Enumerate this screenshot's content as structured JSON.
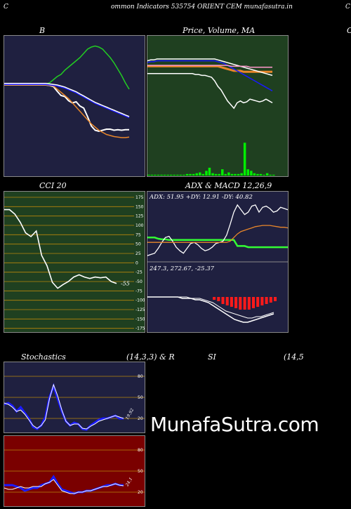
{
  "header": {
    "left": "C",
    "title": "ommon  Indicators 535754  ORIENT CEM munafasutra.in",
    "right": "C"
  },
  "watermark": "MunafaSutra.com",
  "colors": {
    "panel_blue": "#1f2040",
    "panel_green": "#1f4020",
    "panel_red": "#7a0000",
    "grid_orange": "#b8860b",
    "white": "#ffffff",
    "blue": "#1a1aff",
    "orange": "#e8862a",
    "green": "#22cc22",
    "bright_green": "#33ff33"
  },
  "chart_data": [
    {
      "id": "bb",
      "type": "line",
      "title": "B",
      "series": [
        {
          "color": "#ffffff",
          "values": [
            100,
            100,
            100,
            100,
            100,
            100,
            100,
            100,
            100,
            100,
            100,
            100,
            99,
            97,
            88,
            80,
            78,
            70,
            66,
            68,
            60,
            56,
            40,
            22,
            14,
            12,
            14,
            16,
            16,
            14,
            15,
            14,
            15,
            15
          ]
        },
        {
          "color": "#e8862a",
          "values": [
            100,
            100,
            100,
            100,
            100,
            100,
            100,
            100,
            100,
            100,
            100,
            100,
            99,
            98,
            92,
            86,
            80,
            74,
            66,
            58,
            50,
            42,
            34,
            26,
            20,
            14,
            10,
            6,
            4,
            2,
            1,
            0,
            0,
            1
          ]
        },
        {
          "color": "#22cc22",
          "values": [
            102,
            102,
            102,
            102,
            102,
            102,
            102,
            102,
            102,
            102,
            102,
            102,
            104,
            110,
            116,
            120,
            128,
            134,
            140,
            146,
            152,
            160,
            168,
            172,
            174,
            172,
            168,
            160,
            152,
            142,
            130,
            118,
            104,
            92
          ]
        },
        {
          "color": "#1a1aff",
          "values": [
            101,
            101,
            101,
            101,
            101,
            101,
            101,
            101,
            101,
            101,
            101,
            101,
            100,
            99,
            98,
            96,
            94,
            91,
            88,
            85,
            81,
            77,
            73,
            69,
            65,
            62,
            59,
            56,
            53,
            50,
            47,
            44,
            41,
            38
          ]
        },
        {
          "color": "#ffffff",
          "values": [
            103,
            103,
            103,
            103,
            103,
            103,
            103,
            103,
            103,
            103,
            103,
            103,
            102,
            101,
            100,
            98,
            96,
            93,
            90,
            87,
            83,
            79,
            75,
            71,
            67,
            64,
            61,
            58,
            55,
            52,
            49,
            46,
            43,
            40
          ]
        }
      ]
    },
    {
      "id": "price",
      "type": "line",
      "title": "Price,  Volume,  MA",
      "series": [
        {
          "color": "#ffffff",
          "values": [
            74,
            74,
            74,
            74,
            74,
            74,
            74,
            74,
            74,
            74,
            74,
            74,
            74,
            74,
            74,
            73,
            73,
            72,
            72,
            71,
            70,
            66,
            60,
            56,
            50,
            44,
            40,
            36,
            42,
            44,
            42,
            43,
            46,
            45,
            44,
            43,
            44,
            46,
            44,
            42
          ]
        },
        {
          "color": "#e8862a",
          "values": [
            82,
            82,
            82,
            82,
            82,
            82,
            82,
            82,
            82,
            82,
            82,
            82,
            82,
            82,
            82,
            82,
            82,
            82,
            82,
            82,
            82,
            82,
            82,
            81,
            80,
            79,
            78,
            77,
            77,
            77,
            76,
            76,
            76,
            76,
            76,
            76,
            76,
            76,
            76,
            76
          ]
        },
        {
          "color": "#1a1aff",
          "values": [
            86,
            87,
            87,
            88,
            88,
            88,
            88,
            88,
            88,
            88,
            88,
            88,
            88,
            88,
            88,
            88,
            88,
            88,
            88,
            88,
            88,
            88,
            87,
            86,
            85,
            83,
            81,
            79,
            77,
            75,
            73,
            71,
            69,
            67,
            65,
            63,
            61,
            59,
            57,
            55
          ]
        },
        {
          "color": "#ffffff",
          "values": [
            88,
            89,
            89,
            90,
            90,
            90,
            90,
            90,
            90,
            90,
            90,
            90,
            90,
            90,
            90,
            90,
            90,
            90,
            90,
            90,
            90,
            90,
            89,
            88,
            87,
            86,
            85,
            84,
            83,
            82,
            81,
            80,
            79,
            78,
            77,
            76,
            75,
            74,
            73,
            72
          ]
        },
        {
          "color": "#ff99cc",
          "values": [
            83,
            83,
            83,
            83,
            83,
            83,
            83,
            83,
            83,
            83,
            83,
            83,
            83,
            83,
            83,
            83,
            83,
            83,
            83,
            83,
            83,
            83,
            83,
            83,
            83,
            83,
            82,
            82,
            82,
            82,
            82,
            82,
            81,
            81,
            81,
            81,
            81,
            81,
            81,
            81
          ]
        }
      ],
      "volume": [
        1,
        1,
        1,
        1,
        1,
        1,
        1,
        1,
        1,
        1,
        1,
        1,
        2,
        2,
        2,
        3,
        4,
        2,
        6,
        10,
        3,
        2,
        2,
        8,
        2,
        4,
        2,
        2,
        2,
        3,
        42,
        8,
        6,
        3,
        2,
        2,
        1,
        3,
        1,
        1
      ],
      "volume_color": "#00ee00"
    },
    {
      "id": "cci",
      "type": "line",
      "title": "CCI 20",
      "ticks": [
        175,
        150,
        125,
        100,
        75,
        50,
        25,
        0,
        -25,
        -50,
        -75,
        -100,
        -125,
        -150,
        -175
      ],
      "ylim": [
        -185,
        190
      ],
      "last_label": "-55",
      "values": [
        142,
        142,
        130,
        108,
        80,
        70,
        85,
        20,
        -8,
        -52,
        -68,
        -58,
        -50,
        -38,
        -32,
        -38,
        -42,
        -38,
        -40,
        -38,
        -50,
        -55
      ]
    },
    {
      "id": "adx",
      "type": "line",
      "title": "ADX  & MACD 12,26,9",
      "readout": "ADX: 51.95 +DY: 12.91 -DY: 40.82",
      "ylim": [
        0,
        100
      ],
      "series": [
        {
          "color": "#33ff33",
          "values": [
            38,
            38,
            38,
            36,
            35,
            35,
            34,
            34,
            34,
            34,
            34,
            34,
            34,
            34,
            34,
            34,
            34,
            34,
            34,
            34,
            34,
            34,
            34,
            34,
            34,
            24,
            24,
            24,
            22,
            22,
            22,
            22,
            22,
            22,
            22,
            22,
            22,
            22,
            22,
            22
          ]
        },
        {
          "color": "#ffffff",
          "values": [
            8,
            10,
            12,
            20,
            30,
            38,
            40,
            32,
            22,
            16,
            12,
            20,
            28,
            30,
            26,
            20,
            16,
            18,
            22,
            28,
            30,
            32,
            42,
            60,
            80,
            92,
            84,
            76,
            80,
            90,
            92,
            80,
            88,
            90,
            86,
            80,
            82,
            88,
            86,
            84
          ]
        },
        {
          "color": "#e8862a",
          "values": [
            30,
            30,
            30,
            30,
            30,
            30,
            30,
            30,
            30,
            30,
            30,
            30,
            30,
            30,
            30,
            30,
            30,
            30,
            30,
            30,
            30,
            30,
            30,
            32,
            38,
            44,
            48,
            50,
            52,
            54,
            56,
            57,
            58,
            58,
            58,
            57,
            56,
            55,
            55,
            54
          ]
        }
      ]
    },
    {
      "id": "macd",
      "type": "bar",
      "readout": "247.3,  272.67,  -25.37",
      "histogram": [
        0,
        0,
        0,
        0,
        0,
        0,
        0,
        0,
        0,
        0,
        0,
        0,
        0,
        0,
        0,
        -2,
        -3,
        -5,
        -6,
        -7,
        -8,
        -9,
        -9,
        -9,
        -8,
        -7,
        -6,
        -5,
        -4,
        -3
      ],
      "macd": [
        0,
        0,
        0,
        0,
        0,
        0,
        0,
        0,
        -1,
        -1,
        -1,
        -2,
        -2,
        -3,
        -4,
        -6,
        -8,
        -10,
        -12,
        -14,
        -16,
        -17,
        -18,
        -18,
        -17,
        -16,
        -15,
        -14,
        -13,
        -12
      ],
      "signal": [
        0,
        0,
        0,
        0,
        0,
        0,
        0,
        0,
        0,
        0,
        -1,
        -1,
        -1,
        -2,
        -3,
        -4,
        -6,
        -8,
        -10,
        -11,
        -12,
        -13,
        -14,
        -15,
        -15,
        -14,
        -14,
        -13,
        -12,
        -11
      ]
    },
    {
      "id": "stochastics",
      "type": "line",
      "title": "Stochastics",
      "params": "(14,3,3) & R",
      "ticks": [
        80,
        50,
        20
      ],
      "last_label": "19.92",
      "ylim": [
        0,
        100
      ],
      "series": [
        {
          "color": "#1a1aff",
          "values": [
            40,
            42,
            38,
            30,
            36,
            28,
            20,
            8,
            5,
            10,
            22,
            50,
            66,
            48,
            30,
            16,
            10,
            14,
            12,
            5,
            4,
            10,
            14,
            18,
            20,
            20,
            22,
            24,
            20,
            20
          ]
        },
        {
          "color": "#ffffff",
          "values": [
            42,
            40,
            36,
            30,
            32,
            26,
            18,
            10,
            6,
            10,
            18,
            48,
            68,
            52,
            32,
            16,
            10,
            12,
            12,
            6,
            5,
            9,
            12,
            16,
            18,
            20,
            22,
            24,
            22,
            20
          ]
        }
      ]
    },
    {
      "id": "williams",
      "type": "line",
      "ticks": [
        80,
        50,
        20
      ],
      "last_label": "24.1",
      "ylim": [
        0,
        100
      ],
      "series": [
        {
          "color": "#1a1aff",
          "values": [
            30,
            30,
            30,
            28,
            26,
            22,
            24,
            26,
            26,
            30,
            32,
            34,
            42,
            32,
            24,
            22,
            20,
            18,
            20,
            20,
            22,
            22,
            24,
            26,
            28,
            30,
            30,
            32,
            30,
            30
          ]
        },
        {
          "color": "#ffffff",
          "values": [
            26,
            24,
            24,
            26,
            28,
            26,
            26,
            28,
            28,
            28,
            32,
            34,
            38,
            30,
            22,
            20,
            18,
            18,
            20,
            20,
            22,
            22,
            24,
            26,
            28,
            28,
            30,
            32,
            30,
            29
          ]
        }
      ]
    },
    {
      "id": "rsi",
      "type": "line",
      "title": "SI",
      "params": "(14,5"
    }
  ]
}
